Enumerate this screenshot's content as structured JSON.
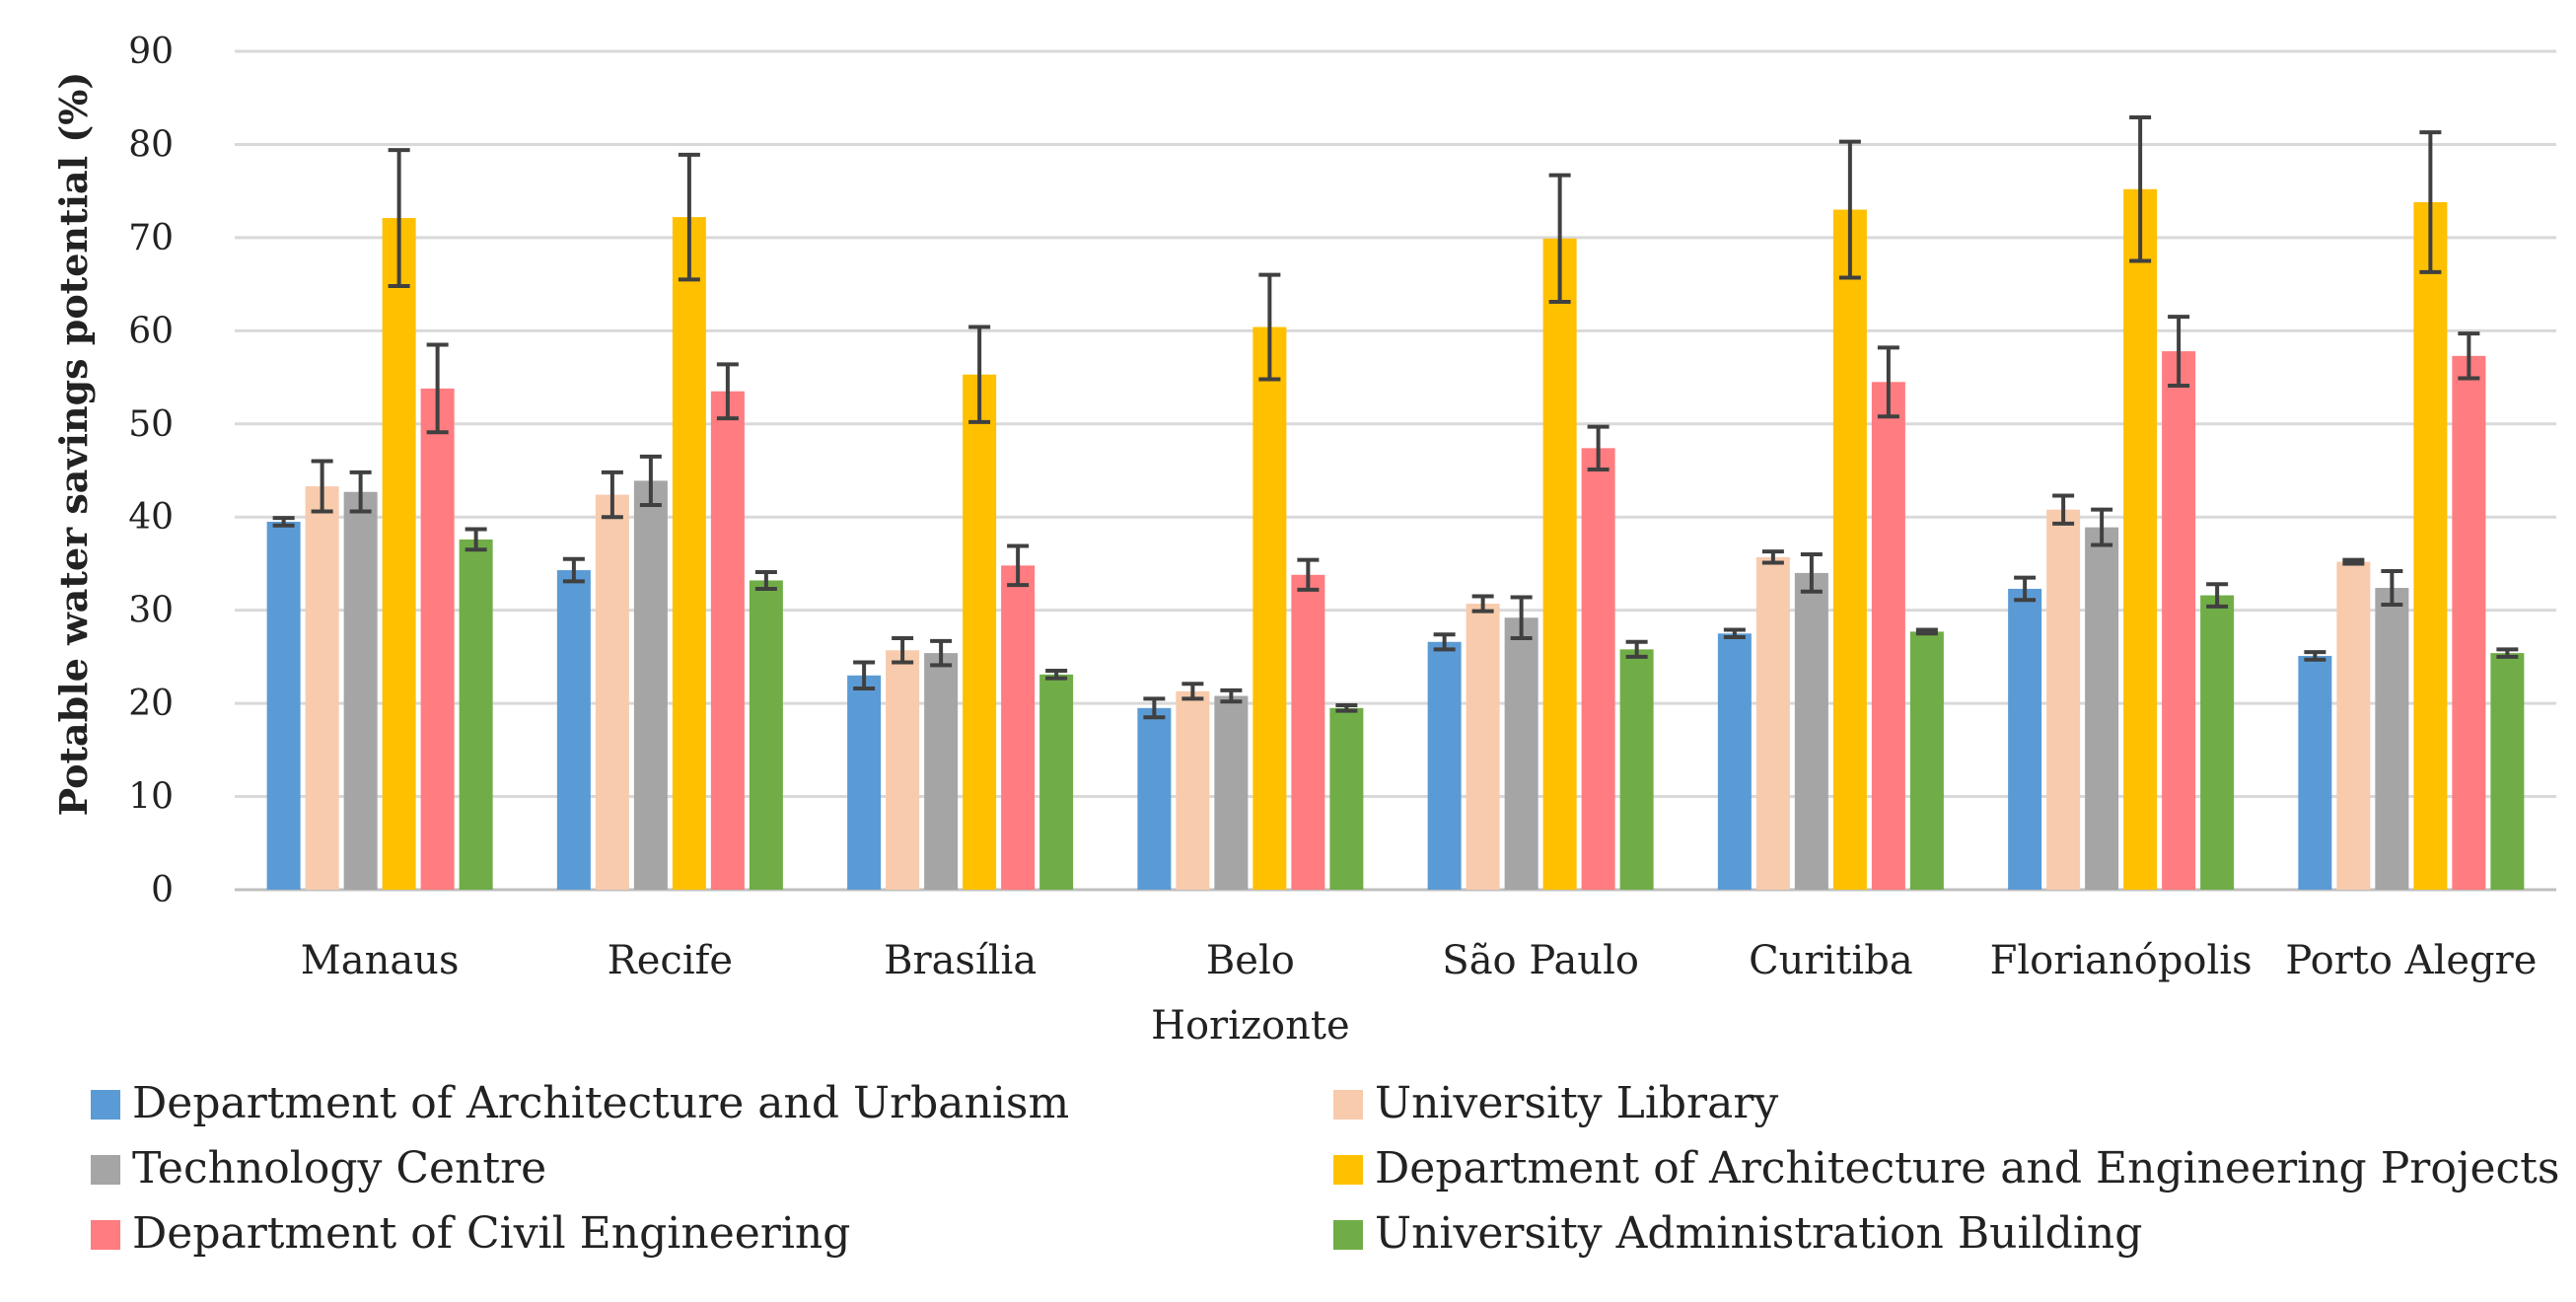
{
  "chart_data": {
    "type": "bar",
    "title": "",
    "xlabel": "",
    "ylabel": "Potable water savings potential (%)",
    "ylim": [
      0,
      90
    ],
    "yticks": [
      0,
      10,
      20,
      30,
      40,
      50,
      60,
      70,
      80,
      90
    ],
    "grid": true,
    "legend_position": "bottom",
    "categories": [
      [
        "Manaus"
      ],
      [
        "Recife"
      ],
      [
        "Brasília"
      ],
      [
        "Belo",
        "Horizonte"
      ],
      [
        "São Paulo"
      ],
      [
        "Curitiba"
      ],
      [
        "Florianópolis"
      ],
      [
        "Porto Alegre"
      ]
    ],
    "series": [
      {
        "name": "Department of Architecture and Urbanism",
        "color": "#5b9bd5",
        "values": [
          39.5,
          34.3,
          23.0,
          19.5,
          26.6,
          27.5,
          32.3,
          25.1
        ],
        "errors": [
          0.4,
          1.2,
          1.4,
          1.0,
          0.8,
          0.4,
          1.2,
          0.4
        ]
      },
      {
        "name": "University Library",
        "color": "#f8cbad",
        "values": [
          43.3,
          42.4,
          25.7,
          21.3,
          30.7,
          35.7,
          40.8,
          35.2
        ],
        "errors": [
          2.7,
          2.4,
          1.3,
          0.8,
          0.8,
          0.6,
          1.5,
          0.2
        ]
      },
      {
        "name": "Technology Centre",
        "color": "#a5a5a5",
        "values": [
          42.7,
          43.9,
          25.4,
          20.8,
          29.2,
          34.0,
          38.9,
          32.4
        ],
        "errors": [
          2.1,
          2.6,
          1.3,
          0.6,
          2.2,
          2.0,
          1.9,
          1.8
        ]
      },
      {
        "name": "Department of Architecture and Engineering Projects",
        "color": "#ffc000",
        "values": [
          72.1,
          72.2,
          55.3,
          60.4,
          69.9,
          73.0,
          75.2,
          73.8
        ],
        "errors": [
          7.3,
          6.7,
          5.1,
          5.6,
          6.8,
          7.3,
          7.7,
          7.5
        ]
      },
      {
        "name": "Department of Civil Engineering",
        "color": "#ff7c80",
        "values": [
          53.8,
          53.5,
          34.8,
          33.8,
          47.4,
          54.5,
          57.8,
          57.3
        ],
        "errors": [
          4.7,
          2.9,
          2.1,
          1.6,
          2.3,
          3.7,
          3.7,
          2.4
        ]
      },
      {
        "name": "University Administration Building",
        "color": "#70ad47",
        "values": [
          37.6,
          33.2,
          23.1,
          19.5,
          25.8,
          27.7,
          31.6,
          25.4
        ],
        "errors": [
          1.1,
          0.9,
          0.4,
          0.3,
          0.8,
          0.2,
          1.2,
          0.4
        ]
      }
    ]
  }
}
